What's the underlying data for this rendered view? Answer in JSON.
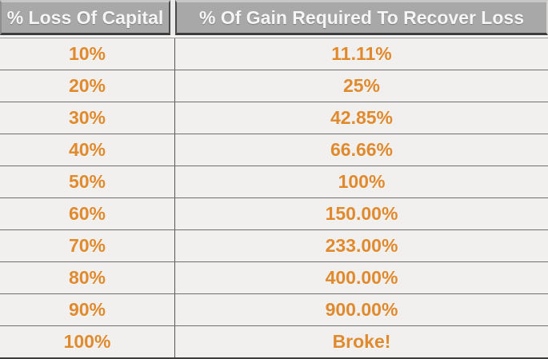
{
  "chart_data": {
    "type": "table",
    "title": "",
    "columns": [
      "% Loss Of Capital",
      "% Of Gain Required To Recover Loss"
    ],
    "rows": [
      [
        "10%",
        "11.11%"
      ],
      [
        "20%",
        "25%"
      ],
      [
        "30%",
        "42.85%"
      ],
      [
        "40%",
        "66.66%"
      ],
      [
        "50%",
        "100%"
      ],
      [
        "60%",
        "150.00%"
      ],
      [
        "70%",
        "233.00%"
      ],
      [
        "80%",
        "400.00%"
      ],
      [
        "90%",
        "900.00%"
      ],
      [
        "100%",
        "Broke!"
      ]
    ],
    "layout_hints": {
      "grid": "on",
      "header_style": "gray-bar-white-bold-text",
      "value_style": "orange-bold-centered"
    }
  },
  "colors": {
    "header_bg": "#a8a8a8",
    "header_text": "#f5f5f5",
    "row_bg": "#f1f0ee",
    "value_text": "#e08a2d",
    "border_dark": "#3d3d3d",
    "row_border": "#6f6f6f"
  }
}
